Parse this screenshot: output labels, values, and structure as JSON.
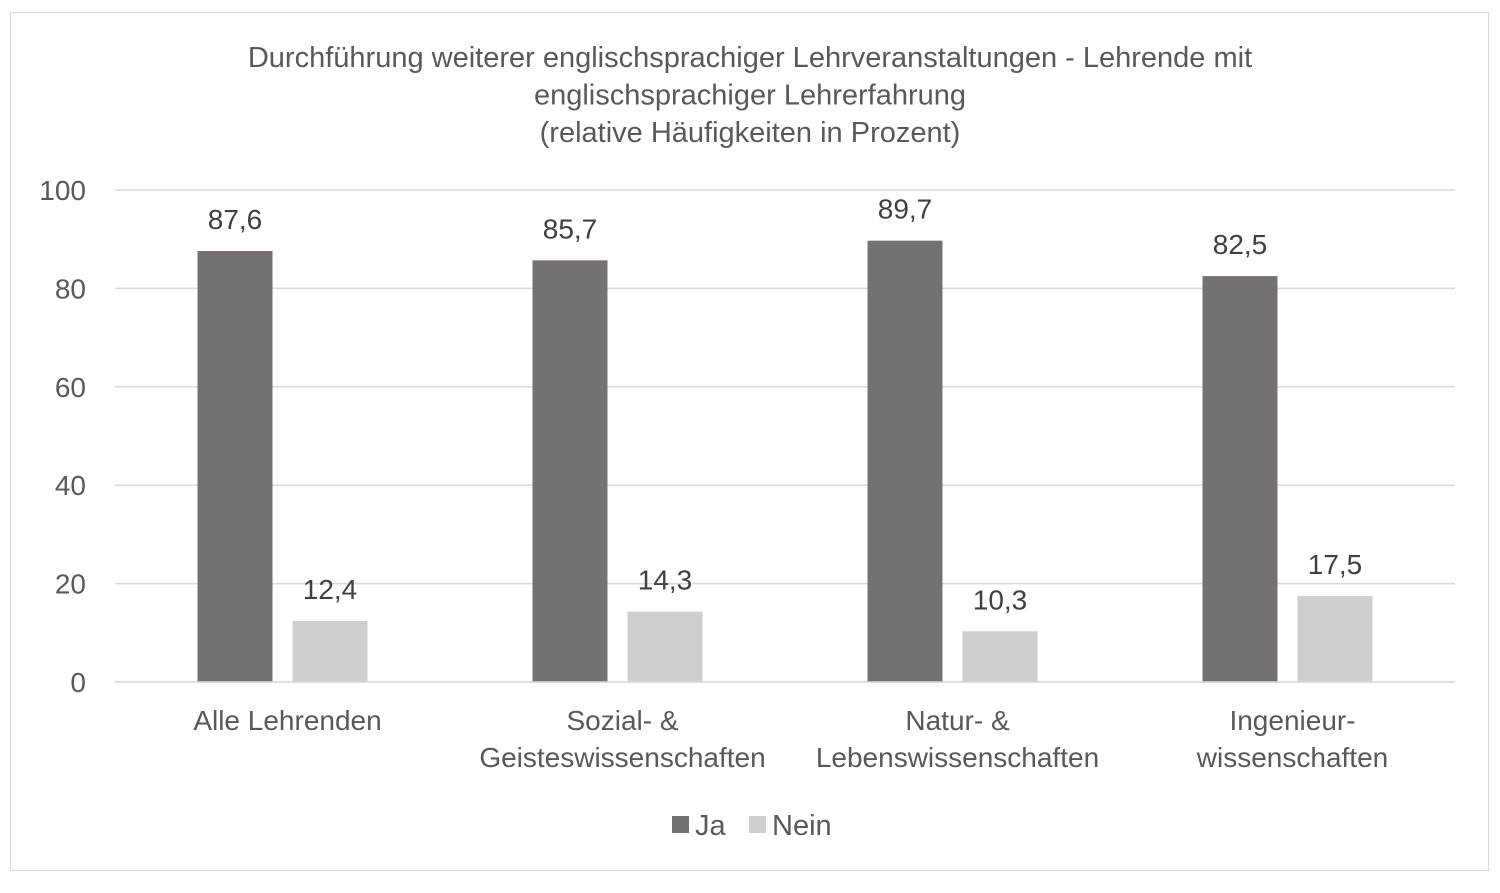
{
  "chart_data": {
    "type": "bar",
    "title_lines": [
      "Durchführung weiterer englischsprachiger Lehrveranstaltungen - Lehrende mit",
      "englischsprachiger Lehrerfahrung",
      "(relative Häufigkeiten in Prozent)"
    ],
    "categories": [
      [
        "Alle Lehrenden"
      ],
      [
        "Sozial- &",
        "Geisteswissenschaften"
      ],
      [
        "Natur- &",
        "Lebenswissenschaften"
      ],
      [
        "Ingenieur-",
        "wissenschaften"
      ]
    ],
    "series": [
      {
        "name": "Ja",
        "color": "#767171",
        "values": [
          87.6,
          85.7,
          89.7,
          82.5
        ],
        "labels": [
          "87,6",
          "85,7",
          "89,7",
          "82,5"
        ]
      },
      {
        "name": "Nein",
        "color": "#d0cece",
        "values": [
          12.4,
          14.3,
          10.3,
          17.5
        ],
        "labels": [
          "12,4",
          "14,3",
          "10,3",
          "17,5"
        ]
      }
    ],
    "ylim": [
      0,
      100
    ],
    "yticks": [
      0,
      20,
      40,
      60,
      80,
      100
    ],
    "grid": true,
    "legend": "bottom",
    "xlabel": "",
    "ylabel": ""
  }
}
